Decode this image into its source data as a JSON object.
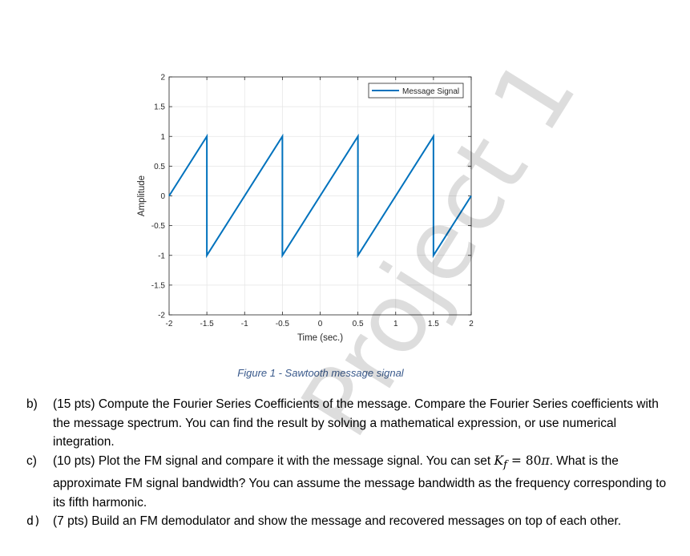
{
  "chart_data": {
    "type": "line",
    "title": "",
    "xlabel": "Time (sec.)",
    "ylabel": "Amplitude",
    "xlim": [
      -2,
      2
    ],
    "ylim": [
      -2,
      2
    ],
    "xticks": [
      -2,
      -1.5,
      -1,
      -0.5,
      0,
      0.5,
      1,
      1.5,
      2
    ],
    "xtick_labels": [
      "-2",
      "-1.5",
      "-1",
      "-0.5",
      "0",
      "0.5",
      "1",
      "1.5",
      "2"
    ],
    "yticks": [
      -2,
      -1.5,
      -1,
      -0.5,
      0,
      0.5,
      1,
      1.5,
      2
    ],
    "ytick_labels": [
      "-2",
      "-1.5",
      "-1",
      "-0.5",
      "0",
      "0.5",
      "1",
      "1.5",
      "2"
    ],
    "grid": true,
    "legend": "top-right",
    "series": [
      {
        "name": "Message Signal",
        "color": "#0072BD",
        "x": [
          -2,
          -1.5,
          -1.5,
          -0.5,
          -0.5,
          0.5,
          0.5,
          1.5,
          1.5,
          2
        ],
        "y": [
          0,
          1,
          -1,
          1,
          -1,
          1,
          -1,
          1,
          -1,
          0
        ]
      }
    ]
  },
  "figure_caption": "Figure 1 - Sawtooth message signal",
  "watermark": "Project 1",
  "items": [
    {
      "label": "b)",
      "text": "(15 pts) Compute the Fourier Series Coefficients of the message.  Compare the Fourier Series coefficients with the message spectrum. You can find the result by solving a mathematical expression, or use numerical integration."
    },
    {
      "label": "c)",
      "text_before": "(10 pts) Plot the FM signal and compare it with the message signal. You can set ",
      "math_var": "K",
      "math_sub": "f",
      "math_eq": " = 80",
      "math_pi": "π",
      "text_after": ". What is the approximate FM signal bandwidth? You can assume the message bandwidth as the frequency corresponding to its fifth harmonic."
    },
    {
      "label": "d)",
      "text": "(7 pts) Build an FM demodulator and show the message and recovered messages on top of each other."
    }
  ]
}
